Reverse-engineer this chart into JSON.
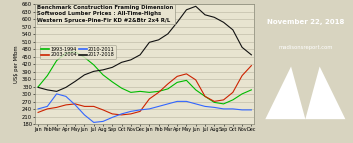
{
  "title_line1": "Benchmark Construction Framing Dimension",
  "title_line2": "Softwood Lumber Prices : All-Time-Highs",
  "title_line3": "Western Spruce-Pine-Fir KD #2&Btr 2x4 R/L",
  "date_label": "November 22, 2018",
  "website": "madisonsreport.com",
  "ylabel": "US$ per Mfbm",
  "ylim": [
    180,
    660
  ],
  "yticks": [
    180,
    210,
    240,
    270,
    300,
    330,
    360,
    390,
    420,
    450,
    480,
    510,
    540,
    570,
    600,
    630,
    660
  ],
  "x_months": [
    "Jan",
    "Feb",
    "Mar",
    "Apr",
    "May",
    "Jun",
    "Jul",
    "Aug",
    "Sep",
    "Oct",
    "Nov",
    "Dec",
    "Jan",
    "Feb",
    "Mar",
    "Apr",
    "May",
    "Jun",
    "Jul",
    "Aug",
    "Sep",
    "Oct",
    "Nov",
    "Dec"
  ],
  "bg_color": "#d8d4c0",
  "plot_bg": "#e8e4d0",
  "grid_color": "#b8b4a0",
  "series": {
    "1993-1994": {
      "color": "#00bb00",
      "values": [
        330,
        375,
        435,
        465,
        470,
        448,
        418,
        378,
        350,
        325,
        308,
        312,
        308,
        312,
        322,
        348,
        356,
        318,
        292,
        268,
        262,
        278,
        302,
        318
      ]
    },
    "2003-2004": {
      "color": "#cc2200",
      "values": [
        228,
        242,
        248,
        258,
        262,
        252,
        252,
        238,
        222,
        218,
        222,
        232,
        282,
        308,
        342,
        372,
        382,
        358,
        292,
        272,
        278,
        308,
        375,
        415
      ]
    },
    "2010-2011": {
      "color": "#3366ff",
      "values": [
        242,
        252,
        302,
        292,
        258,
        218,
        188,
        192,
        208,
        222,
        232,
        238,
        242,
        252,
        262,
        272,
        272,
        262,
        252,
        248,
        242,
        242,
        238,
        238
      ]
    },
    "2017-2018": {
      "color": "#111111",
      "values": [
        328,
        318,
        312,
        328,
        352,
        378,
        392,
        398,
        408,
        428,
        438,
        458,
        508,
        518,
        542,
        588,
        638,
        652,
        618,
        608,
        588,
        558,
        488,
        458
      ]
    }
  },
  "legend_order": [
    "1993-1994",
    "2003-2004",
    "2010-2011",
    "2017-2018"
  ],
  "date_box_bg": "#1a7a6a",
  "date_box_fg": "#ffffff",
  "logo_bg": "#1a6a5a"
}
